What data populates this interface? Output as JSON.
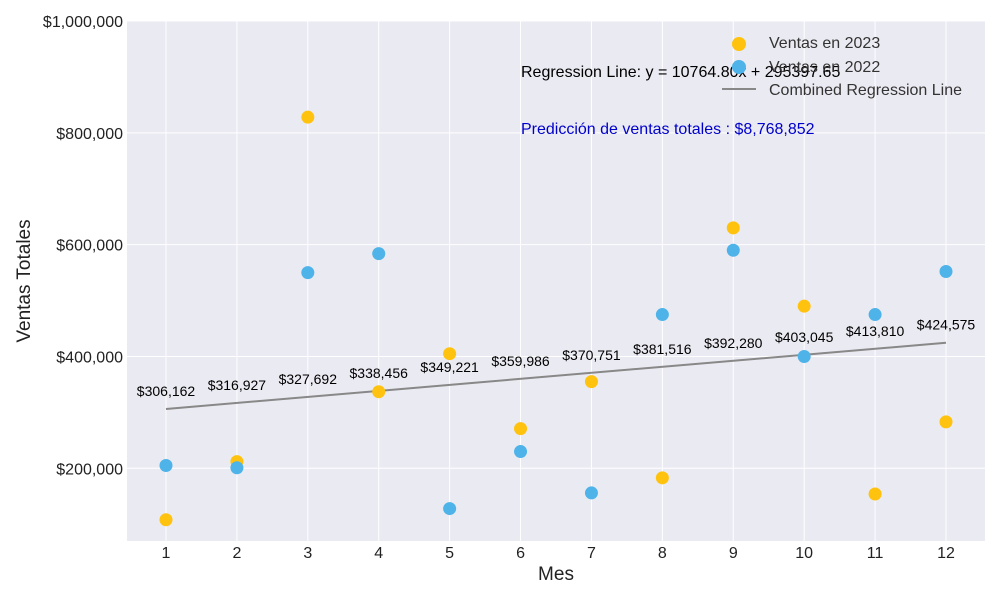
{
  "chart_data": {
    "type": "scatter",
    "xlabel": "Mes",
    "ylabel": "Ventas Totales",
    "xlim": [
      0.45,
      12.55
    ],
    "ylim": [
      70000,
      1000000
    ],
    "x_ticks": [
      1,
      2,
      3,
      4,
      5,
      6,
      7,
      8,
      9,
      10,
      11,
      12
    ],
    "y_ticks": [
      200000,
      400000,
      600000,
      800000,
      1000000
    ],
    "y_tick_labels": [
      "$200,000",
      "$400,000",
      "$600,000",
      "$800,000",
      "$1,000,000"
    ],
    "grid": true,
    "legend_position": "top-right",
    "series": [
      {
        "name": "Ventas en 2023",
        "color": "#FFC20E",
        "x": [
          1,
          2,
          3,
          4,
          5,
          6,
          7,
          8,
          9,
          10,
          11,
          12
        ],
        "y": [
          108000,
          212000,
          828000,
          337000,
          405000,
          271000,
          355000,
          183000,
          630000,
          490000,
          154000,
          283000
        ]
      },
      {
        "name": "Ventas en 2022",
        "color": "#4EB3E8",
        "x": [
          1,
          2,
          3,
          4,
          5,
          6,
          7,
          8,
          9,
          10,
          11,
          12
        ],
        "y": [
          205000,
          201000,
          550000,
          584000,
          128000,
          230000,
          156000,
          475000,
          590000,
          400000,
          475000,
          552000
        ]
      }
    ],
    "regression": {
      "name": "Combined Regression Line",
      "color": "#888888",
      "x": [
        1,
        12
      ],
      "y": [
        306162,
        424575
      ]
    },
    "regression_point_labels": {
      "x": [
        1,
        2,
        3,
        4,
        5,
        6,
        7,
        8,
        9,
        10,
        11,
        12
      ],
      "y": [
        306162,
        316927,
        327692,
        338456,
        349221,
        359986,
        370751,
        381516,
        392280,
        403045,
        413810,
        424575
      ],
      "labels": [
        "$306,162",
        "$316,927",
        "$327,692",
        "$338,456",
        "$349,221",
        "$359,986",
        "$370,751",
        "$381,516",
        "$392,280",
        "$403,045",
        "$413,810",
        "$424,575"
      ]
    },
    "annotations": {
      "equation": "Regression Line: y = 10764.80x + 295397.65",
      "prediction": "Predicción de ventas totales : $8,768,852",
      "prediction_color": "#0000CC"
    }
  }
}
